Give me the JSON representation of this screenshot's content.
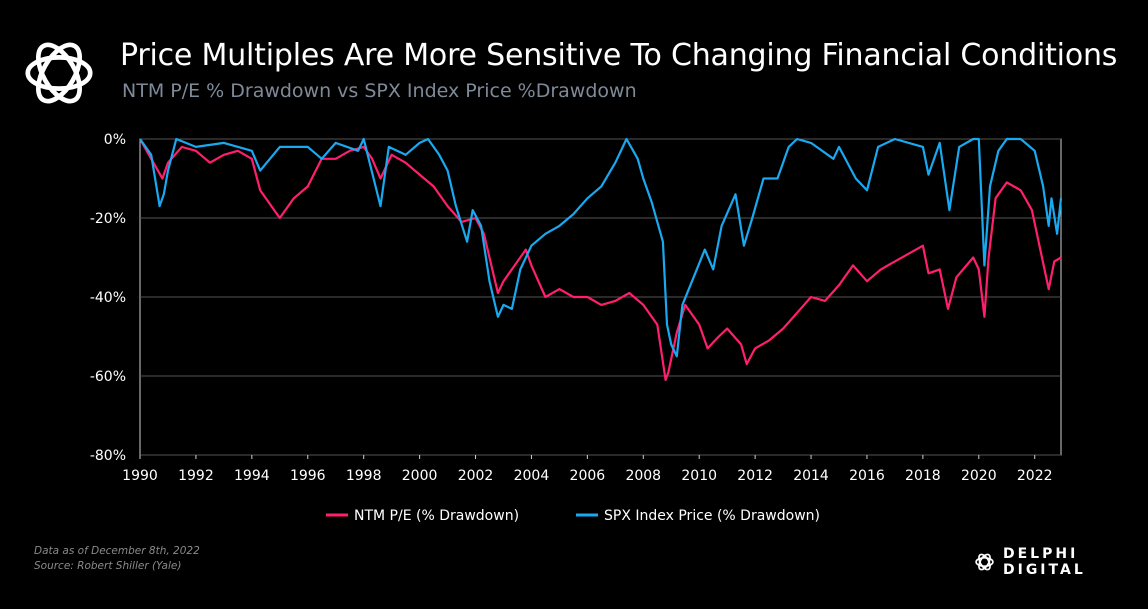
{
  "header": {
    "title": "Price Multiples Are More Sensitive To Changing Financial Conditions",
    "subtitle": "NTM P/E % Drawdown vs SPX Index Price %Drawdown"
  },
  "footer": {
    "note_line1": "Data as of December  8th, 2022",
    "note_line2": "Source: Robert Shiller (Yale)",
    "brand": "DELPHI DIGITAL"
  },
  "icons": {
    "logo": "delphi-knot-icon",
    "brand_mark": "delphi-knot-icon"
  },
  "colors": {
    "background": "#000000",
    "ntm_pe": "#ff1f6e",
    "spx": "#19a9f0",
    "grid": "#555555"
  },
  "chart_data": {
    "type": "line",
    "title": "",
    "xlabel": "",
    "ylabel": "",
    "xlim": [
      1990,
      2022.94
    ],
    "ylim": [
      -80,
      0
    ],
    "x_ticks": [
      1990,
      1992,
      1994,
      1996,
      1998,
      2000,
      2002,
      2004,
      2006,
      2008,
      2010,
      2012,
      2014,
      2016,
      2018,
      2020,
      2022
    ],
    "x_tick_labels": [
      "1990",
      "1992",
      "1994",
      "1996",
      "1998",
      "2000",
      "2002",
      "2004",
      "2006",
      "2008",
      "2010",
      "2012",
      "2014",
      "2016",
      "2018",
      "2020",
      "2022"
    ],
    "y_ticks": [
      0,
      -20,
      -40,
      -60,
      -80
    ],
    "y_tick_labels": [
      "0%",
      "-20%",
      "-40%",
      "-60%",
      "-80%"
    ],
    "grid": "horizontal",
    "legend_position": "bottom",
    "series": [
      {
        "name": "NTM P/E (% Drawdown)",
        "color": "#ff1f6e",
        "points": [
          [
            1990.0,
            0
          ],
          [
            1990.4,
            -5
          ],
          [
            1990.8,
            -10
          ],
          [
            1991.0,
            -6
          ],
          [
            1991.5,
            -2
          ],
          [
            1992.0,
            -3
          ],
          [
            1992.5,
            -6
          ],
          [
            1993.0,
            -4
          ],
          [
            1993.5,
            -3
          ],
          [
            1994.0,
            -5
          ],
          [
            1994.3,
            -13
          ],
          [
            1994.8,
            -18
          ],
          [
            1995.0,
            -20
          ],
          [
            1995.5,
            -15
          ],
          [
            1996.0,
            -12
          ],
          [
            1996.5,
            -5
          ],
          [
            1997.0,
            -5
          ],
          [
            1997.5,
            -3
          ],
          [
            1998.0,
            -2
          ],
          [
            1998.3,
            -5
          ],
          [
            1998.6,
            -10
          ],
          [
            1999.0,
            -4
          ],
          [
            1999.5,
            -6
          ],
          [
            2000.0,
            -9
          ],
          [
            2000.5,
            -12
          ],
          [
            2001.0,
            -17
          ],
          [
            2001.5,
            -21
          ],
          [
            2002.0,
            -20
          ],
          [
            2002.3,
            -24
          ],
          [
            2002.6,
            -33
          ],
          [
            2002.8,
            -39
          ],
          [
            2003.0,
            -36
          ],
          [
            2003.5,
            -31
          ],
          [
            2003.8,
            -28
          ],
          [
            2004.0,
            -32
          ],
          [
            2004.5,
            -40
          ],
          [
            2005.0,
            -38
          ],
          [
            2005.5,
            -40
          ],
          [
            2006.0,
            -40
          ],
          [
            2006.5,
            -42
          ],
          [
            2007.0,
            -41
          ],
          [
            2007.5,
            -39
          ],
          [
            2008.0,
            -42
          ],
          [
            2008.5,
            -47
          ],
          [
            2008.8,
            -61
          ],
          [
            2008.9,
            -59
          ],
          [
            2009.2,
            -49
          ],
          [
            2009.5,
            -42
          ],
          [
            2010.0,
            -47
          ],
          [
            2010.3,
            -53
          ],
          [
            2010.7,
            -50
          ],
          [
            2011.0,
            -48
          ],
          [
            2011.5,
            -52
          ],
          [
            2011.7,
            -57
          ],
          [
            2012.0,
            -53
          ],
          [
            2012.5,
            -51
          ],
          [
            2013.0,
            -48
          ],
          [
            2013.5,
            -44
          ],
          [
            2014.0,
            -40
          ],
          [
            2014.5,
            -41
          ],
          [
            2015.0,
            -37
          ],
          [
            2015.5,
            -32
          ],
          [
            2016.0,
            -36
          ],
          [
            2016.5,
            -33
          ],
          [
            2017.0,
            -31
          ],
          [
            2017.5,
            -29
          ],
          [
            2018.0,
            -27
          ],
          [
            2018.2,
            -34
          ],
          [
            2018.6,
            -33
          ],
          [
            2018.9,
            -43
          ],
          [
            2019.2,
            -35
          ],
          [
            2019.8,
            -30
          ],
          [
            2020.0,
            -33
          ],
          [
            2020.2,
            -45
          ],
          [
            2020.35,
            -30
          ],
          [
            2020.6,
            -15
          ],
          [
            2021.0,
            -11
          ],
          [
            2021.5,
            -13
          ],
          [
            2021.9,
            -18
          ],
          [
            2022.2,
            -28
          ],
          [
            2022.5,
            -38
          ],
          [
            2022.7,
            -31
          ],
          [
            2022.94,
            -30
          ]
        ]
      },
      {
        "name": "SPX Index Price (% Drawdown)",
        "color": "#19a9f0",
        "points": [
          [
            1990.0,
            0
          ],
          [
            1990.4,
            -4
          ],
          [
            1990.7,
            -17
          ],
          [
            1990.85,
            -14
          ],
          [
            1991.0,
            -8
          ],
          [
            1991.3,
            0
          ],
          [
            1992.0,
            -2
          ],
          [
            1993.0,
            -1
          ],
          [
            1994.0,
            -3
          ],
          [
            1994.3,
            -8
          ],
          [
            1995.0,
            -2
          ],
          [
            1996.0,
            -2
          ],
          [
            1996.5,
            -5
          ],
          [
            1997.0,
            -1
          ],
          [
            1997.8,
            -3
          ],
          [
            1998.0,
            0
          ],
          [
            1998.6,
            -17
          ],
          [
            1998.9,
            -2
          ],
          [
            1999.5,
            -4
          ],
          [
            2000.0,
            -1
          ],
          [
            2000.3,
            0
          ],
          [
            2000.7,
            -4
          ],
          [
            2001.0,
            -8
          ],
          [
            2001.3,
            -17
          ],
          [
            2001.7,
            -26
          ],
          [
            2001.9,
            -18
          ],
          [
            2002.2,
            -22
          ],
          [
            2002.5,
            -36
          ],
          [
            2002.8,
            -45
          ],
          [
            2003.0,
            -42
          ],
          [
            2003.3,
            -43
          ],
          [
            2003.6,
            -33
          ],
          [
            2004.0,
            -27
          ],
          [
            2004.5,
            -24
          ],
          [
            2005.0,
            -22
          ],
          [
            2005.5,
            -19
          ],
          [
            2006.0,
            -15
          ],
          [
            2006.5,
            -12
          ],
          [
            2007.0,
            -6
          ],
          [
            2007.4,
            0
          ],
          [
            2007.8,
            -5
          ],
          [
            2008.0,
            -10
          ],
          [
            2008.3,
            -16
          ],
          [
            2008.7,
            -26
          ],
          [
            2008.85,
            -47
          ],
          [
            2009.0,
            -52
          ],
          [
            2009.2,
            -55
          ],
          [
            2009.4,
            -42
          ],
          [
            2009.8,
            -35
          ],
          [
            2010.2,
            -28
          ],
          [
            2010.5,
            -33
          ],
          [
            2010.8,
            -22
          ],
          [
            2011.3,
            -14
          ],
          [
            2011.6,
            -27
          ],
          [
            2011.9,
            -20
          ],
          [
            2012.3,
            -10
          ],
          [
            2012.8,
            -10
          ],
          [
            2013.2,
            -2
          ],
          [
            2013.5,
            0
          ],
          [
            2014.0,
            -1
          ],
          [
            2014.8,
            -5
          ],
          [
            2015.0,
            -2
          ],
          [
            2015.6,
            -10
          ],
          [
            2016.0,
            -13
          ],
          [
            2016.4,
            -2
          ],
          [
            2017.0,
            0
          ],
          [
            2018.0,
            -2
          ],
          [
            2018.2,
            -9
          ],
          [
            2018.6,
            -1
          ],
          [
            2018.95,
            -18
          ],
          [
            2019.3,
            -2
          ],
          [
            2019.8,
            0
          ],
          [
            2020.0,
            0
          ],
          [
            2020.2,
            -32
          ],
          [
            2020.4,
            -12
          ],
          [
            2020.7,
            -3
          ],
          [
            2021.0,
            0
          ],
          [
            2021.5,
            0
          ],
          [
            2022.0,
            -3
          ],
          [
            2022.3,
            -12
          ],
          [
            2022.5,
            -22
          ],
          [
            2022.6,
            -15
          ],
          [
            2022.8,
            -24
          ],
          [
            2022.94,
            -15
          ]
        ]
      }
    ]
  }
}
